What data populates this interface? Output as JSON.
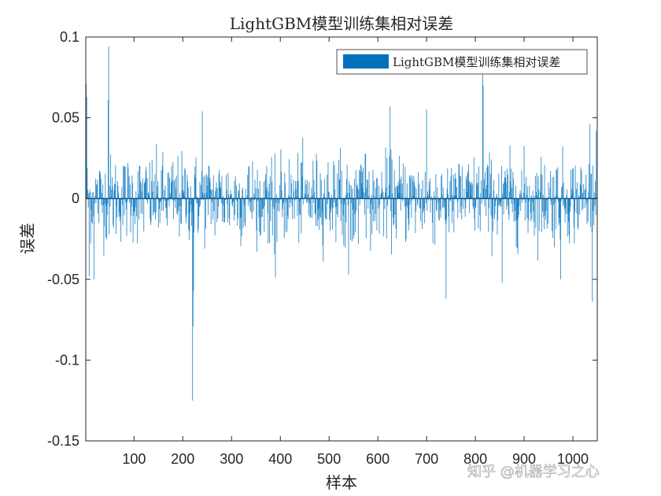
{
  "chart_data": {
    "type": "bar",
    "title": "LightGBM模型训练集相对误差",
    "xlabel": "样本",
    "ylabel": "误差",
    "xlim": [
      1,
      1050
    ],
    "ylim": [
      -0.15,
      0.1
    ],
    "xticks": [
      100,
      200,
      300,
      400,
      500,
      600,
      700,
      800,
      900,
      1000
    ],
    "yticks": [
      0.1,
      0.05,
      0,
      -0.05,
      -0.1,
      -0.15
    ],
    "ytick_labels": [
      "0.1",
      "0.05",
      "0",
      "-0.05",
      "-0.1",
      "-0.15"
    ],
    "grid": false,
    "legend_position": "top-right",
    "series": [
      {
        "name": "LightGBM模型训练集相对误差",
        "color": "#0072BD",
        "n_samples": 1050,
        "typical_amplitude": 0.015,
        "notable_values": [
          {
            "x": 2,
            "y": 0.071
          },
          {
            "x": 3,
            "y": 0.063
          },
          {
            "x": 8,
            "y": -0.048
          },
          {
            "x": 18,
            "y": -0.05
          },
          {
            "x": 48,
            "y": 0.094
          },
          {
            "x": 47,
            "y": 0.061
          },
          {
            "x": 220,
            "y": -0.125
          },
          {
            "x": 221,
            "y": -0.079
          },
          {
            "x": 222,
            "y": -0.057
          },
          {
            "x": 240,
            "y": 0.054
          },
          {
            "x": 390,
            "y": -0.049
          },
          {
            "x": 540,
            "y": -0.047
          },
          {
            "x": 625,
            "y": 0.057
          },
          {
            "x": 700,
            "y": 0.055
          },
          {
            "x": 740,
            "y": -0.062
          },
          {
            "x": 815,
            "y": 0.078
          },
          {
            "x": 816,
            "y": 0.07
          },
          {
            "x": 855,
            "y": -0.052
          },
          {
            "x": 975,
            "y": -0.05
          },
          {
            "x": 1035,
            "y": 0.046
          },
          {
            "x": 1040,
            "y": -0.064
          },
          {
            "x": 1048,
            "y": 0.042
          }
        ]
      }
    ]
  },
  "watermark": {
    "text": "知乎 @机器学习之心"
  }
}
